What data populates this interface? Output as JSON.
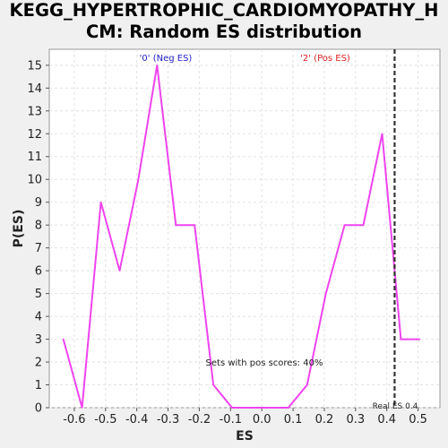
{
  "chart_data": {
    "type": "line",
    "title_lines": [
      "KEGG_HYPERTROPHIC_CARDIOMYOPATHY_H",
      "CM: Random ES distribution"
    ],
    "xlabel": "ES",
    "ylabel": "P(ES)",
    "xlim": [
      -0.68,
      0.57
    ],
    "ylim": [
      0,
      15.7
    ],
    "xticks": [
      "-0.6",
      "-0.5",
      "-0.4",
      "-0.3",
      "-0.2",
      "-0.1",
      "0.0",
      "0.1",
      "0.2",
      "0.3",
      "0.4",
      "0.5"
    ],
    "xtick_values": [
      -0.6,
      -0.5,
      -0.4,
      -0.3,
      -0.2,
      -0.1,
      0.0,
      0.1,
      0.2,
      0.3,
      0.4,
      0.5
    ],
    "yticks": [
      "0",
      "1",
      "2",
      "3",
      "4",
      "5",
      "6",
      "7",
      "8",
      "9",
      "10",
      "11",
      "12",
      "13",
      "14",
      "15"
    ],
    "ytick_values": [
      0,
      1,
      2,
      3,
      4,
      5,
      6,
      7,
      8,
      9,
      10,
      11,
      12,
      13,
      14,
      15
    ],
    "grid": true,
    "series": [
      {
        "color": "#ee44ee",
        "x": [
          -0.635,
          -0.575,
          -0.515,
          -0.455,
          -0.395,
          -0.335,
          -0.275,
          -0.215,
          -0.155,
          -0.095,
          -0.035,
          0.025,
          0.085,
          0.145,
          0.205,
          0.265,
          0.325,
          0.385,
          0.445,
          0.505
        ],
        "y": [
          3,
          0,
          9,
          6,
          10,
          15,
          8,
          8,
          1,
          0,
          0,
          0,
          0,
          1,
          5,
          8,
          8,
          12,
          3,
          3
        ]
      }
    ],
    "real_es": 0.4,
    "real_es_x": 0.425,
    "real_es_label": "Real ES 0.4",
    "annotations": {
      "neg_label": "'0' (Neg ES)",
      "pos_label": "'2' (Pos ES)",
      "pos_scores": "Sets with pos scores: 40%",
      "neg_color": "#2222cc",
      "pos_color": "#dd2222"
    }
  }
}
